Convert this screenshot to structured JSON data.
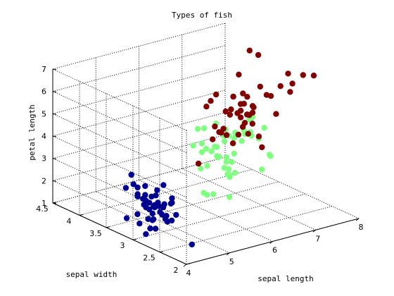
{
  "chart_data": {
    "type": "scatter",
    "title": "Types of fish",
    "xlabel": "sepal length",
    "ylabel": "sepal width",
    "zlabel": "petal length",
    "xlim": [
      4,
      8
    ],
    "ylim": [
      2,
      4.5
    ],
    "zlim": [
      1,
      7
    ],
    "xticks": [
      4,
      5,
      6,
      7,
      8
    ],
    "yticks": [
      2,
      2.5,
      3,
      3.5,
      4,
      4.5
    ],
    "zticks": [
      1,
      2,
      3,
      4,
      5,
      6,
      7
    ],
    "grid": true,
    "series": [
      {
        "color": "#00008f",
        "points": [
          [
            5.1,
            3.5,
            1.4
          ],
          [
            4.9,
            3.0,
            1.4
          ],
          [
            4.7,
            3.2,
            1.3
          ],
          [
            4.6,
            3.1,
            1.5
          ],
          [
            5.0,
            3.6,
            1.4
          ],
          [
            5.4,
            3.9,
            1.7
          ],
          [
            4.6,
            3.4,
            1.4
          ],
          [
            5.0,
            3.4,
            1.5
          ],
          [
            4.4,
            2.9,
            1.4
          ],
          [
            4.9,
            3.1,
            1.5
          ],
          [
            5.4,
            3.7,
            1.5
          ],
          [
            4.8,
            3.4,
            1.6
          ],
          [
            4.8,
            3.0,
            1.4
          ],
          [
            4.3,
            3.0,
            1.1
          ],
          [
            5.8,
            4.0,
            1.2
          ],
          [
            5.7,
            4.4,
            1.5
          ],
          [
            5.4,
            3.9,
            1.3
          ],
          [
            5.1,
            3.5,
            1.4
          ],
          [
            5.7,
            3.8,
            1.7
          ],
          [
            5.1,
            3.8,
            1.5
          ],
          [
            5.4,
            3.4,
            1.7
          ],
          [
            5.1,
            3.7,
            1.5
          ],
          [
            4.6,
            3.6,
            1.0
          ],
          [
            5.1,
            3.3,
            1.7
          ],
          [
            4.8,
            3.4,
            1.9
          ],
          [
            5.0,
            3.0,
            1.6
          ],
          [
            5.0,
            3.4,
            1.6
          ],
          [
            5.2,
            3.5,
            1.5
          ],
          [
            5.2,
            3.4,
            1.4
          ],
          [
            4.7,
            3.2,
            1.6
          ],
          [
            4.8,
            3.1,
            1.6
          ],
          [
            5.4,
            3.4,
            1.5
          ],
          [
            5.2,
            4.1,
            1.5
          ],
          [
            5.5,
            4.2,
            1.4
          ],
          [
            4.9,
            3.1,
            1.5
          ],
          [
            5.0,
            3.2,
            1.2
          ],
          [
            5.5,
            3.5,
            1.3
          ],
          [
            4.4,
            3.0,
            1.3
          ],
          [
            5.1,
            3.4,
            1.5
          ],
          [
            5.0,
            3.5,
            1.3
          ],
          [
            4.5,
            2.3,
            1.3
          ],
          [
            4.4,
            3.2,
            1.3
          ],
          [
            5.0,
            3.5,
            1.6
          ],
          [
            5.1,
            3.8,
            1.9
          ],
          [
            4.8,
            3.0,
            1.4
          ],
          [
            5.1,
            3.8,
            1.6
          ],
          [
            4.6,
            3.2,
            1.4
          ],
          [
            5.3,
            3.7,
            1.5
          ],
          [
            5.0,
            3.3,
            1.4
          ]
        ]
      },
      {
        "color": "#80ff80",
        "points": [
          [
            7.0,
            3.2,
            4.7
          ],
          [
            6.4,
            3.2,
            4.5
          ],
          [
            6.9,
            3.1,
            4.9
          ],
          [
            5.5,
            2.3,
            4.0
          ],
          [
            6.5,
            2.8,
            4.6
          ],
          [
            5.7,
            2.8,
            4.5
          ],
          [
            6.3,
            3.3,
            4.7
          ],
          [
            4.9,
            2.4,
            3.3
          ],
          [
            6.6,
            2.9,
            4.6
          ],
          [
            5.2,
            2.7,
            3.9
          ],
          [
            5.0,
            2.0,
            3.5
          ],
          [
            5.9,
            3.0,
            4.2
          ],
          [
            6.0,
            2.2,
            4.0
          ],
          [
            6.1,
            2.9,
            4.7
          ],
          [
            5.6,
            2.9,
            3.6
          ],
          [
            6.7,
            3.1,
            4.4
          ],
          [
            5.6,
            3.0,
            4.5
          ],
          [
            5.8,
            2.7,
            4.1
          ],
          [
            6.2,
            2.2,
            4.5
          ],
          [
            5.6,
            2.5,
            3.9
          ],
          [
            5.9,
            3.2,
            4.8
          ],
          [
            6.1,
            2.8,
            4.0
          ],
          [
            6.3,
            2.5,
            4.9
          ],
          [
            6.1,
            2.8,
            4.7
          ],
          [
            6.4,
            2.9,
            4.3
          ],
          [
            6.6,
            3.0,
            4.4
          ],
          [
            6.8,
            2.8,
            4.8
          ],
          [
            6.7,
            3.0,
            5.0
          ],
          [
            6.0,
            2.9,
            4.5
          ],
          [
            5.7,
            2.6,
            3.5
          ],
          [
            5.5,
            2.4,
            3.8
          ],
          [
            5.5,
            2.4,
            3.7
          ],
          [
            5.8,
            2.7,
            3.9
          ],
          [
            6.0,
            2.7,
            5.1
          ],
          [
            5.4,
            3.0,
            4.5
          ],
          [
            6.0,
            3.4,
            4.5
          ],
          [
            6.7,
            3.1,
            4.7
          ],
          [
            6.3,
            2.3,
            4.4
          ],
          [
            5.6,
            3.0,
            4.1
          ],
          [
            5.5,
            2.5,
            4.0
          ],
          [
            5.5,
            2.6,
            4.4
          ],
          [
            6.1,
            3.0,
            4.6
          ],
          [
            5.8,
            2.6,
            4.0
          ],
          [
            5.0,
            2.3,
            3.3
          ],
          [
            5.6,
            2.7,
            4.2
          ],
          [
            5.7,
            3.0,
            4.2
          ],
          [
            5.7,
            2.9,
            4.2
          ],
          [
            6.2,
            2.9,
            4.3
          ],
          [
            5.1,
            2.5,
            3.0
          ],
          [
            5.7,
            2.8,
            4.1
          ]
        ]
      },
      {
        "color": "#800000",
        "points": [
          [
            6.3,
            3.3,
            6.0
          ],
          [
            5.8,
            2.7,
            5.1
          ],
          [
            7.1,
            3.0,
            5.9
          ],
          [
            6.3,
            2.9,
            5.6
          ],
          [
            6.5,
            3.0,
            5.8
          ],
          [
            7.6,
            3.0,
            6.6
          ],
          [
            4.9,
            2.5,
            4.5
          ],
          [
            7.3,
            2.9,
            6.3
          ],
          [
            6.7,
            2.5,
            5.8
          ],
          [
            7.2,
            3.6,
            6.1
          ],
          [
            6.5,
            3.2,
            5.1
          ],
          [
            6.4,
            2.7,
            5.3
          ],
          [
            6.8,
            3.0,
            5.5
          ],
          [
            5.7,
            2.5,
            5.0
          ],
          [
            5.8,
            2.8,
            5.1
          ],
          [
            6.4,
            3.2,
            5.3
          ],
          [
            6.5,
            3.0,
            5.5
          ],
          [
            7.7,
            3.8,
            6.7
          ],
          [
            7.7,
            2.6,
            6.9
          ],
          [
            6.0,
            2.2,
            5.0
          ],
          [
            6.9,
            3.2,
            5.7
          ],
          [
            5.6,
            2.8,
            4.9
          ],
          [
            7.7,
            2.8,
            6.7
          ],
          [
            6.3,
            2.7,
            4.9
          ],
          [
            6.7,
            3.3,
            5.7
          ],
          [
            7.2,
            3.2,
            6.0
          ],
          [
            6.2,
            2.8,
            4.8
          ],
          [
            6.1,
            3.0,
            4.9
          ],
          [
            6.4,
            2.8,
            5.6
          ],
          [
            7.2,
            3.0,
            5.8
          ],
          [
            7.4,
            2.8,
            6.1
          ],
          [
            7.9,
            3.8,
            6.4
          ],
          [
            6.4,
            2.8,
            5.6
          ],
          [
            6.3,
            2.8,
            5.1
          ],
          [
            6.1,
            2.6,
            5.6
          ],
          [
            7.7,
            3.0,
            6.1
          ],
          [
            6.3,
            3.4,
            5.6
          ],
          [
            6.4,
            3.1,
            5.5
          ],
          [
            6.0,
            3.0,
            4.8
          ],
          [
            6.9,
            3.1,
            5.4
          ],
          [
            6.7,
            3.1,
            5.6
          ],
          [
            6.9,
            3.1,
            5.1
          ],
          [
            6.8,
            3.2,
            5.9
          ],
          [
            6.7,
            3.3,
            5.7
          ],
          [
            6.7,
            3.0,
            5.2
          ],
          [
            6.3,
            2.5,
            5.0
          ],
          [
            6.5,
            3.0,
            5.2
          ],
          [
            6.2,
            3.4,
            5.4
          ],
          [
            5.9,
            3.0,
            5.1
          ]
        ]
      }
    ]
  }
}
